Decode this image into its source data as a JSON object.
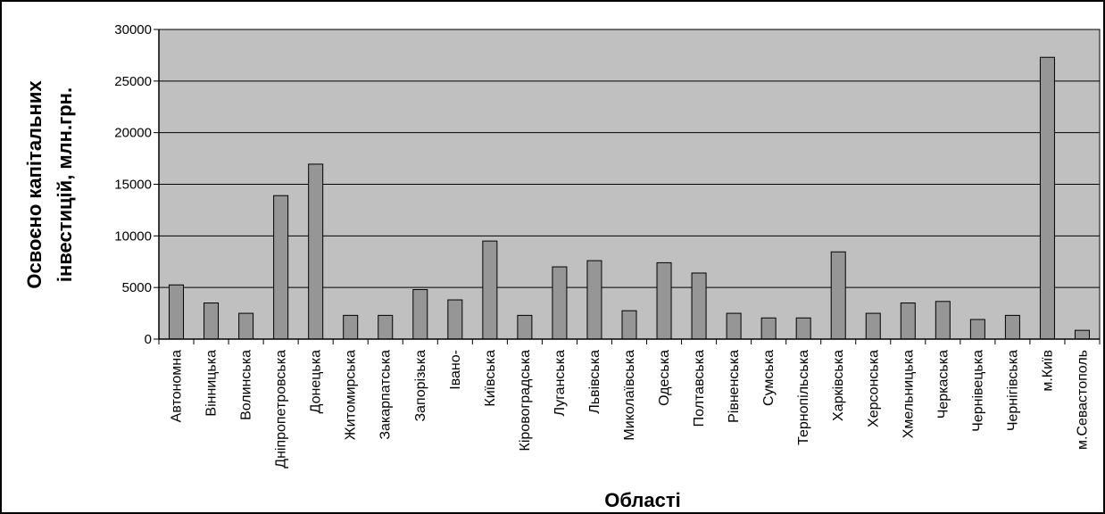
{
  "chart_data": {
    "type": "bar",
    "title": "",
    "xlabel": "Області",
    "ylabel_lines": [
      "Освоєно капітальних",
      "інвестицій, млн.грн."
    ],
    "ylim": [
      0,
      30000
    ],
    "yticks": [
      0,
      5000,
      10000,
      15000,
      20000,
      25000,
      30000
    ],
    "grid": true,
    "legend": "none",
    "categories": [
      "Автономна",
      "Вінницька",
      "Волинська",
      "Дніпропетровська",
      "Донецька",
      "Житомирська",
      "Закарпатська",
      "Запорізька",
      "Івано-",
      "Київська",
      "Кіровоградська",
      "Луганська",
      "Львівська",
      "Миколаївська",
      "Одеська",
      "Полтавська",
      "Рівненська",
      "Сумська",
      "Тернопільська",
      "Харківська",
      "Херсонська",
      "Хмельницька",
      "Черкаська",
      "Чернівецька",
      "Чернігівська",
      "м.Київ",
      "м.Севастополь"
    ],
    "values": [
      5250,
      3500,
      2500,
      13900,
      16950,
      2300,
      2300,
      4800,
      3800,
      9500,
      2300,
      7000,
      7600,
      2750,
      7400,
      6400,
      2500,
      2050,
      2050,
      8450,
      2500,
      3500,
      3650,
      1900,
      2300,
      27300,
      850
    ],
    "colors": {
      "plot_background": "#c0c0c0",
      "bar_fill": "#969696",
      "bar_stroke": "#000000",
      "gridline": "#000000"
    }
  }
}
